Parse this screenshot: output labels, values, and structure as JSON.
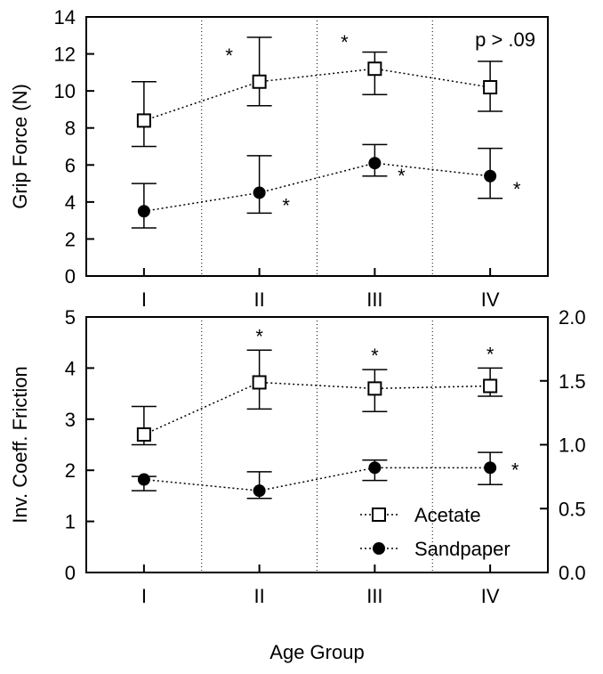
{
  "chart_data": [
    {
      "type": "line",
      "categories": [
        "I",
        "II",
        "III",
        "IV"
      ],
      "ylabel": "Grip Force (N)",
      "ylim": [
        0,
        14
      ],
      "yticks": [
        "0",
        "2",
        "4",
        "6",
        "8",
        "10",
        "12",
        "14"
      ],
      "annotation": "p > .09",
      "series": [
        {
          "name": "Acetate",
          "marker": "open-square",
          "values": [
            8.4,
            10.5,
            11.2,
            10.2
          ],
          "err_low": [
            7.0,
            9.2,
            9.8,
            8.9
          ],
          "err_high": [
            10.5,
            12.9,
            12.1,
            11.6
          ],
          "significant": [
            false,
            true,
            true,
            false
          ]
        },
        {
          "name": "Sandpaper",
          "marker": "filled-circle",
          "values": [
            3.5,
            4.5,
            6.1,
            5.4
          ],
          "err_low": [
            2.6,
            3.4,
            5.4,
            4.2
          ],
          "err_high": [
            5.0,
            6.5,
            7.1,
            6.9
          ],
          "significant": [
            false,
            true,
            true,
            true
          ]
        }
      ]
    },
    {
      "type": "line",
      "categories": [
        "I",
        "II",
        "III",
        "IV"
      ],
      "xlabel": "Age Group",
      "ylabel": "Inv. Coeff. Friction",
      "ylim": [
        0,
        5
      ],
      "yticks": [
        "0",
        "1",
        "2",
        "3",
        "4",
        "5"
      ],
      "y2lim": [
        0,
        2
      ],
      "y2ticks": [
        "0.0",
        "0.5",
        "1.0",
        "1.5",
        "2.0"
      ],
      "legend": "bottom-right",
      "series": [
        {
          "name": "Acetate",
          "marker": "open-square",
          "values": [
            2.7,
            3.72,
            3.6,
            3.65
          ],
          "err_low": [
            2.5,
            3.2,
            3.15,
            3.45
          ],
          "err_high": [
            3.25,
            4.35,
            3.97,
            4.0
          ],
          "significant": [
            false,
            true,
            true,
            true
          ]
        },
        {
          "name": "Sandpaper",
          "marker": "filled-circle",
          "values": [
            1.82,
            1.6,
            2.05,
            2.05
          ],
          "err_low": [
            1.6,
            1.45,
            1.8,
            1.72
          ],
          "err_high": [
            1.88,
            1.97,
            2.2,
            2.35
          ],
          "significant": [
            false,
            false,
            false,
            true
          ]
        }
      ]
    }
  ],
  "legend": {
    "items": [
      "Acetate",
      "Sandpaper"
    ]
  }
}
